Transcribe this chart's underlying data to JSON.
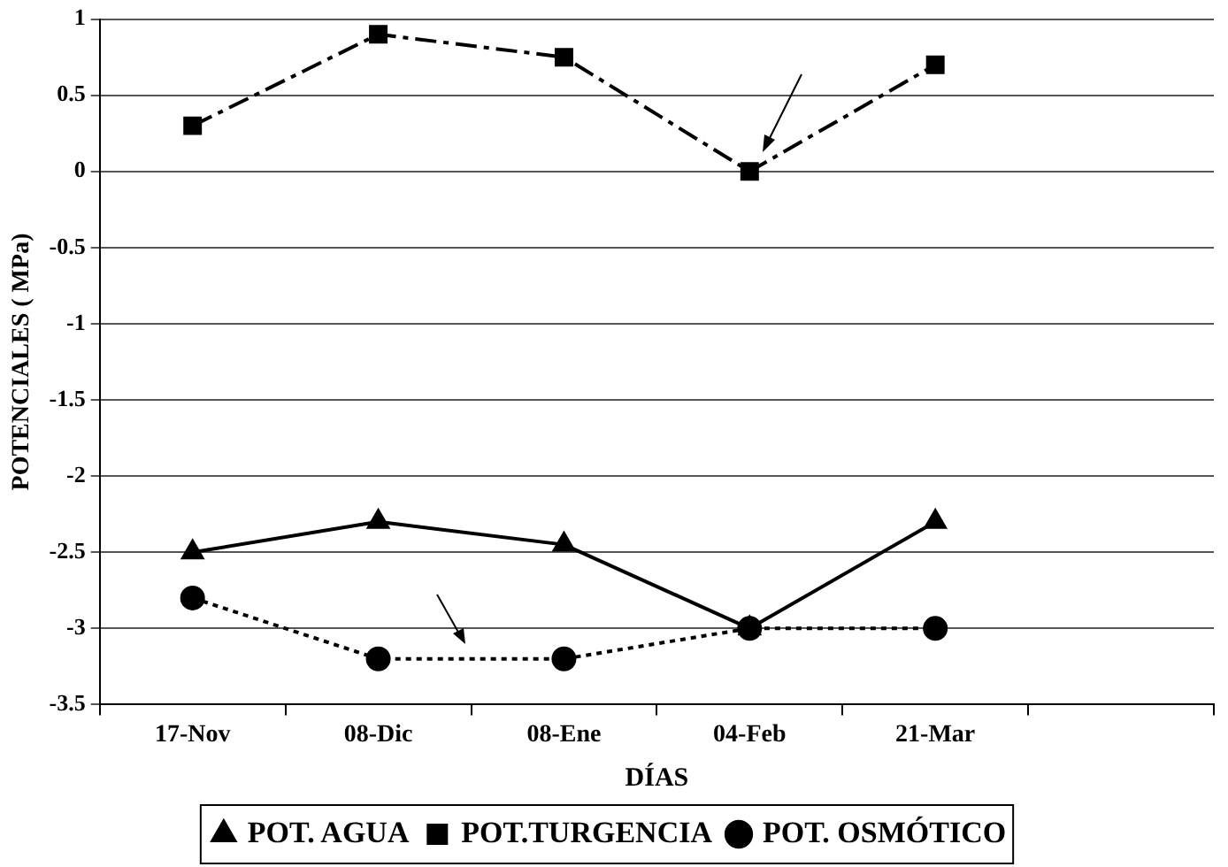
{
  "chart_data": {
    "type": "line",
    "xlabel": "DÍAS",
    "ylabel": "POTENCIALES ( MPa)",
    "categories": [
      "17-Nov",
      "08-Dic",
      "08-Ene",
      "04-Feb",
      "21-Mar",
      null
    ],
    "series": [
      {
        "name": "POT. AGUA",
        "color": "#000000",
        "marker": "triangle",
        "line_style": "solid",
        "values": [
          -2.5,
          -2.3,
          -2.45,
          -3,
          -2.3,
          null
        ]
      },
      {
        "name": "POT.TURGENCIA",
        "color": "#000000",
        "marker": "square",
        "line_style": "dashdot",
        "values": [
          0.3,
          0.9,
          0.75,
          0,
          0.7,
          null
        ]
      },
      {
        "name": "POT. OSMÓTICO",
        "color": "#000000",
        "marker": "circle",
        "line_style": "dotted",
        "values": [
          -2.8,
          -3.2,
          -3.2,
          -3,
          -3,
          null
        ]
      }
    ],
    "ylim": [
      -3.5,
      1
    ],
    "yticks": [
      -3.5,
      -3,
      -2.5,
      -2,
      -1.5,
      -1,
      -0.5,
      0,
      0.5,
      1
    ],
    "grid": "y",
    "legend": "bottom"
  }
}
